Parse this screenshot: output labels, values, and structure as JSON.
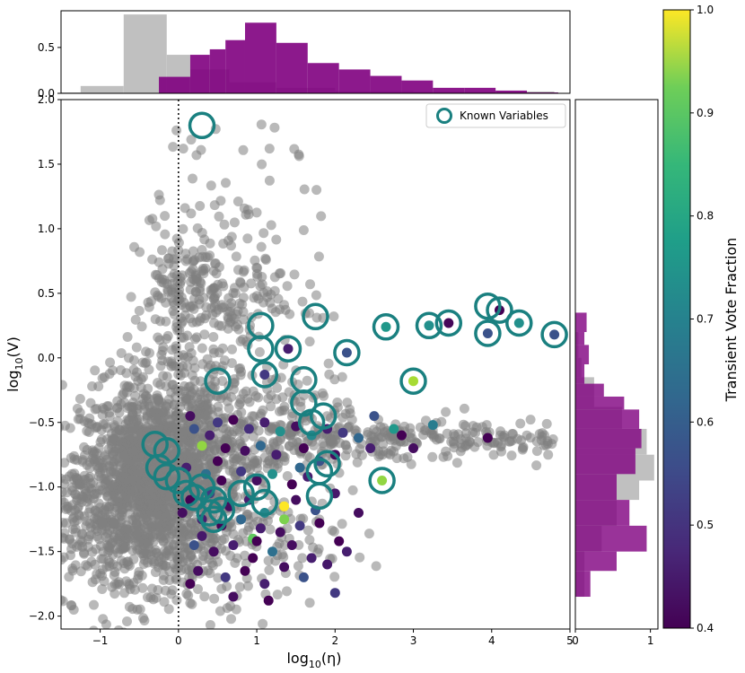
{
  "chart_data": {
    "type": "scatter",
    "xlabel": "log$_{10}$(η)",
    "xlabel_main": "log",
    "xlabel_sub": "10",
    "xlabel_arg": "(η)",
    "ylabel_main": "log",
    "ylabel_sub": "10",
    "ylabel_arg": "(V)",
    "xlim": [
      -1.5,
      5.0
    ],
    "ylim": [
      -2.1,
      2.0
    ],
    "xticks": [
      -1,
      0,
      1,
      2,
      3,
      4,
      5
    ],
    "yticks": [
      -2.0,
      -1.5,
      -1.0,
      -0.5,
      0.0,
      0.5,
      1.0,
      1.5,
      2.0
    ],
    "xtick_labels": [
      "−1",
      "0",
      "1",
      "2",
      "3",
      "4",
      "5"
    ],
    "ytick_labels": [
      "−2.0",
      "−1.5",
      "−1.0",
      "−0.5",
      "0.0",
      "0.5",
      "1.0",
      "1.5",
      "2.0"
    ],
    "vline_x": 0,
    "legend": {
      "label": "Known Variables",
      "placement": "top-right"
    },
    "background_cloud_color": "#808080",
    "known_color": "#1a8080",
    "colorbar": {
      "label": "Transient Vote Fraction",
      "range": [
        0.4,
        1.0
      ],
      "ticks": [
        "0.4",
        "0.5",
        "0.6",
        "0.7",
        "0.8",
        "0.9",
        "1.0"
      ]
    },
    "candidates": [
      [
        3.45,
        0.27,
        0.41
      ],
      [
        4.1,
        0.37,
        0.4
      ],
      [
        3.95,
        0.19,
        0.55
      ],
      [
        4.35,
        0.27,
        0.7
      ],
      [
        4.8,
        0.18,
        0.55
      ],
      [
        2.65,
        0.24,
        0.72
      ],
      [
        3.2,
        0.25,
        0.7
      ],
      [
        2.15,
        0.04,
        0.55
      ],
      [
        1.4,
        0.07,
        0.45
      ],
      [
        1.1,
        -0.13,
        0.5
      ],
      [
        3.0,
        -0.18,
        0.92
      ],
      [
        2.6,
        -0.95,
        0.9
      ],
      [
        0.3,
        -0.68,
        0.9
      ],
      [
        1.35,
        -1.15,
        1.0
      ],
      [
        1.35,
        -1.25,
        0.88
      ],
      [
        0.95,
        -1.4,
        0.85
      ],
      [
        2.5,
        -0.45,
        0.55
      ],
      [
        3.25,
        -0.52,
        0.65
      ],
      [
        3.95,
        -0.62,
        0.4
      ],
      [
        0.15,
        -0.45,
        0.42
      ],
      [
        0.5,
        -0.5,
        0.5
      ],
      [
        0.7,
        -0.48,
        0.4
      ],
      [
        0.2,
        -0.55,
        0.55
      ],
      [
        0.4,
        -0.6,
        0.45
      ],
      [
        0.9,
        -0.55,
        0.48
      ],
      [
        1.1,
        -0.5,
        0.45
      ],
      [
        1.3,
        -0.57,
        0.7
      ],
      [
        1.5,
        -0.53,
        0.42
      ],
      [
        1.7,
        -0.6,
        0.68
      ],
      [
        1.9,
        -0.55,
        0.45
      ],
      [
        2.1,
        -0.58,
        0.5
      ],
      [
        2.3,
        -0.62,
        0.6
      ],
      [
        2.75,
        -0.55,
        0.72
      ],
      [
        0.6,
        -0.7,
        0.4
      ],
      [
        0.85,
        -0.72,
        0.42
      ],
      [
        1.05,
        -0.68,
        0.6
      ],
      [
        1.25,
        -0.75,
        0.45
      ],
      [
        1.6,
        -0.7,
        0.4
      ],
      [
        1.8,
        -0.8,
        0.55
      ],
      [
        2.0,
        -0.75,
        0.42
      ],
      [
        0.1,
        -0.85,
        0.45
      ],
      [
        0.35,
        -0.9,
        0.62
      ],
      [
        0.55,
        -0.95,
        0.4
      ],
      [
        0.8,
        -0.88,
        0.5
      ],
      [
        1.0,
        -0.95,
        0.42
      ],
      [
        1.2,
        -0.9,
        0.7
      ],
      [
        1.45,
        -0.98,
        0.4
      ],
      [
        1.65,
        -0.92,
        0.45
      ],
      [
        0.15,
        -1.1,
        0.4
      ],
      [
        0.4,
        -1.05,
        0.5
      ],
      [
        0.65,
        -1.15,
        0.42
      ],
      [
        0.9,
        -1.1,
        0.45
      ],
      [
        1.1,
        -1.2,
        0.68
      ],
      [
        1.5,
        -1.1,
        0.42
      ],
      [
        1.75,
        -1.18,
        0.55
      ],
      [
        2.0,
        -1.05,
        0.44
      ],
      [
        0.3,
        -1.25,
        0.45
      ],
      [
        0.55,
        -1.3,
        0.4
      ],
      [
        0.8,
        -1.25,
        0.6
      ],
      [
        1.05,
        -1.32,
        0.45
      ],
      [
        1.3,
        -1.35,
        0.42
      ],
      [
        1.55,
        -1.3,
        0.5
      ],
      [
        1.8,
        -1.28,
        0.4
      ],
      [
        0.2,
        -1.45,
        0.55
      ],
      [
        0.45,
        -1.5,
        0.42
      ],
      [
        0.7,
        -1.45,
        0.45
      ],
      [
        0.95,
        -1.55,
        0.4
      ],
      [
        1.2,
        -1.5,
        0.62
      ],
      [
        1.45,
        -1.45,
        0.42
      ],
      [
        1.7,
        -1.55,
        0.45
      ],
      [
        2.05,
        -1.42,
        0.4
      ],
      [
        0.25,
        -1.65,
        0.42
      ],
      [
        0.6,
        -1.7,
        0.5
      ],
      [
        0.85,
        -1.65,
        0.4
      ],
      [
        1.1,
        -1.75,
        0.45
      ],
      [
        1.35,
        -1.62,
        0.42
      ],
      [
        1.6,
        -1.7,
        0.55
      ],
      [
        2.0,
        -1.82,
        0.5
      ],
      [
        0.15,
        -1.75,
        0.4
      ],
      [
        0.7,
        -1.85,
        0.42
      ],
      [
        1.15,
        -1.88,
        0.4
      ],
      [
        1.9,
        -1.6,
        0.44
      ],
      [
        2.15,
        -1.5,
        0.45
      ],
      [
        2.3,
        -1.2,
        0.42
      ],
      [
        0.5,
        -0.8,
        0.4
      ],
      [
        1.55,
        -0.85,
        0.6
      ],
      [
        2.45,
        -0.7,
        0.45
      ],
      [
        2.85,
        -0.6,
        0.4
      ],
      [
        3.0,
        -0.7,
        0.42
      ],
      [
        0.05,
        -1.2,
        0.42
      ],
      [
        0.3,
        -1.38,
        0.44
      ],
      [
        1.0,
        -1.42,
        0.4
      ]
    ],
    "known_variables": [
      [
        0.3,
        1.8
      ],
      [
        1.05,
        0.25
      ],
      [
        1.75,
        0.32
      ],
      [
        2.65,
        0.24
      ],
      [
        3.2,
        0.25
      ],
      [
        3.45,
        0.27
      ],
      [
        3.95,
        0.4
      ],
      [
        4.1,
        0.37
      ],
      [
        4.35,
        0.27
      ],
      [
        4.8,
        0.18
      ],
      [
        3.95,
        0.19
      ],
      [
        1.05,
        0.07
      ],
      [
        1.4,
        0.07
      ],
      [
        2.15,
        0.04
      ],
      [
        1.1,
        -0.13
      ],
      [
        3.0,
        -0.18
      ],
      [
        0.5,
        -0.18
      ],
      [
        1.6,
        -0.17
      ],
      [
        1.6,
        -0.35
      ],
      [
        1.85,
        -0.45
      ],
      [
        1.7,
        -0.5
      ],
      [
        -0.3,
        -0.67
      ],
      [
        -0.15,
        -0.72
      ],
      [
        -0.25,
        -0.85
      ],
      [
        -0.15,
        -0.92
      ],
      [
        0.0,
        -0.95
      ],
      [
        0.1,
        -1.05
      ],
      [
        0.3,
        -1.0
      ],
      [
        0.2,
        -1.08
      ],
      [
        0.45,
        -1.1
      ],
      [
        0.55,
        -1.18
      ],
      [
        0.8,
        -1.05
      ],
      [
        1.0,
        -1.0
      ],
      [
        1.1,
        -1.12
      ],
      [
        1.9,
        -0.82
      ],
      [
        1.8,
        -0.88
      ],
      [
        2.6,
        -0.95
      ],
      [
        1.8,
        -1.07
      ],
      [
        0.4,
        -1.2
      ],
      [
        0.45,
        -1.25
      ]
    ],
    "top_hist": {
      "xlim": [
        -1.5,
        5.0
      ],
      "ylim": [
        0,
        0.9
      ],
      "yticks": [
        "0.0",
        "0.5"
      ],
      "all_color": "#c0c0c0",
      "cand_color": "#800080",
      "all_bins": [
        [
          -1.5,
          -1.25,
          0.01
        ],
        [
          -1.25,
          -0.7,
          0.08
        ],
        [
          -0.7,
          -0.15,
          0.86
        ],
        [
          -0.15,
          0.15,
          0.42
        ],
        [
          0.15,
          0.65,
          0.26
        ],
        [
          0.65,
          1.25,
          0.12
        ],
        [
          1.25,
          2.0,
          0.06
        ],
        [
          2.0,
          3.0,
          0.03
        ],
        [
          3.0,
          4.8,
          0.02
        ]
      ],
      "cand_bins": [
        [
          -0.25,
          0.15,
          0.18
        ],
        [
          0.15,
          0.4,
          0.42
        ],
        [
          0.4,
          0.6,
          0.48
        ],
        [
          0.6,
          0.85,
          0.58
        ],
        [
          0.85,
          1.25,
          0.77
        ],
        [
          1.25,
          1.65,
          0.55
        ],
        [
          1.65,
          2.05,
          0.33
        ],
        [
          2.05,
          2.45,
          0.26
        ],
        [
          2.45,
          2.85,
          0.19
        ],
        [
          2.85,
          3.25,
          0.14
        ],
        [
          3.25,
          3.65,
          0.06
        ],
        [
          3.65,
          4.05,
          0.06
        ],
        [
          4.05,
          4.45,
          0.03
        ],
        [
          4.45,
          4.85,
          0.01
        ]
      ]
    },
    "right_hist": {
      "ylim": [
        -2.1,
        2.0
      ],
      "xlim": [
        0,
        1.1
      ],
      "xticks": [
        "0",
        "1"
      ],
      "all_color": "#c0c0c0",
      "cand_color": "#800080",
      "all_bins": [
        [
          -1.85,
          -1.5,
          0.12
        ],
        [
          -1.5,
          -1.3,
          0.35
        ],
        [
          -1.3,
          -1.1,
          0.55
        ],
        [
          -1.1,
          -0.95,
          0.85
        ],
        [
          -0.95,
          -0.75,
          1.05
        ],
        [
          -0.75,
          -0.55,
          0.95
        ],
        [
          -0.55,
          -0.38,
          0.62
        ],
        [
          -0.38,
          -0.15,
          0.25
        ],
        [
          -0.15,
          0.0,
          0.08
        ],
        [
          0.0,
          0.2,
          0.04
        ]
      ],
      "cand_bins": [
        [
          -1.85,
          -1.65,
          0.2
        ],
        [
          -1.65,
          -1.5,
          0.55
        ],
        [
          -1.5,
          -1.3,
          0.95
        ],
        [
          -1.3,
          -1.1,
          0.72
        ],
        [
          -1.1,
          -0.9,
          0.55
        ],
        [
          -0.9,
          -0.7,
          0.8
        ],
        [
          -0.7,
          -0.55,
          0.88
        ],
        [
          -0.55,
          -0.4,
          0.85
        ],
        [
          -0.4,
          -0.3,
          0.65
        ],
        [
          -0.3,
          -0.2,
          0.38
        ],
        [
          -0.2,
          -0.05,
          0.12
        ],
        [
          -0.05,
          0.1,
          0.18
        ],
        [
          0.1,
          0.2,
          0.12
        ],
        [
          0.2,
          0.35,
          0.15
        ]
      ]
    }
  }
}
